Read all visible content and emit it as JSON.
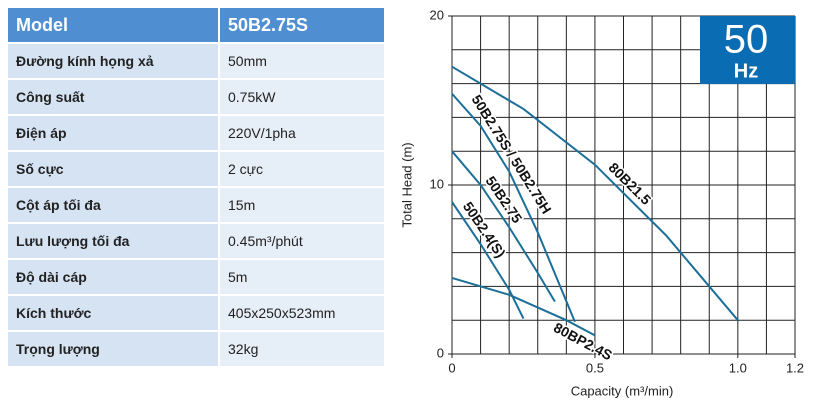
{
  "table": {
    "header": [
      "Model",
      "50B2.75S"
    ],
    "rows": [
      [
        "Đường kính họng xả",
        "50mm"
      ],
      [
        "Công suất",
        "0.75kW"
      ],
      [
        "Điện áp",
        "220V/1pha"
      ],
      [
        "Số cực",
        "2 cực"
      ],
      [
        "Cột áp tối đa",
        "15m"
      ],
      [
        "Lưu lượng tối đa",
        "0.45m³/phút"
      ],
      [
        "Độ dài cáp",
        "5m"
      ],
      [
        "Kích thước",
        "405x250x523mm"
      ],
      [
        "Trọng lượng",
        "32kg"
      ]
    ]
  },
  "chart_data": {
    "type": "line",
    "xlabel": "Capacity (m³/min)",
    "ylabel": "Total Head (m)",
    "badge": {
      "value": "50",
      "unit": "Hz",
      "color": "#0a6db3"
    },
    "xlim": [
      0,
      1.2
    ],
    "ylim": [
      0,
      20
    ],
    "xticks": [
      0,
      0.5,
      {
        "value": 1,
        "label": "1.0"
      },
      1.2
    ],
    "yticks": [
      0,
      10,
      20
    ],
    "grid": true,
    "xgrid": [
      0,
      0.1,
      0.2,
      0.3,
      0.4,
      0.5,
      0.6,
      0.7,
      0.8,
      0.9,
      1,
      1.1,
      1.2
    ],
    "ygrid": [
      0,
      2,
      4,
      6,
      8,
      10,
      12,
      14,
      16,
      18,
      20
    ],
    "series": [
      {
        "name": "80B21.5",
        "color": "#1b6f99",
        "x": [
          0,
          0.25,
          0.5,
          0.75,
          1.0
        ],
        "values": [
          17,
          14.5,
          11.2,
          7,
          2
        ]
      },
      {
        "name": "50B2.75S / 50B2.75H",
        "color": "#1b6f99",
        "x": [
          0,
          0.1,
          0.2,
          0.3,
          0.43
        ],
        "values": [
          15.4,
          13.5,
          10.8,
          7.2,
          1.9
        ]
      },
      {
        "name": "50B2.75",
        "color": "#1b6f99",
        "x": [
          0,
          0.1,
          0.2,
          0.3,
          0.36
        ],
        "values": [
          12,
          10,
          7.5,
          4.8,
          3.1
        ]
      },
      {
        "name": "50B2.4(S)",
        "color": "#1b6f99",
        "x": [
          0,
          0.1,
          0.2,
          0.25
        ],
        "values": [
          9,
          6.5,
          3.8,
          2.1
        ]
      },
      {
        "name": "80BP2.4S",
        "color": "#1b6f99",
        "x": [
          0,
          0.2,
          0.4,
          0.5
        ],
        "values": [
          4.5,
          3.5,
          2,
          1.1
        ]
      }
    ]
  }
}
